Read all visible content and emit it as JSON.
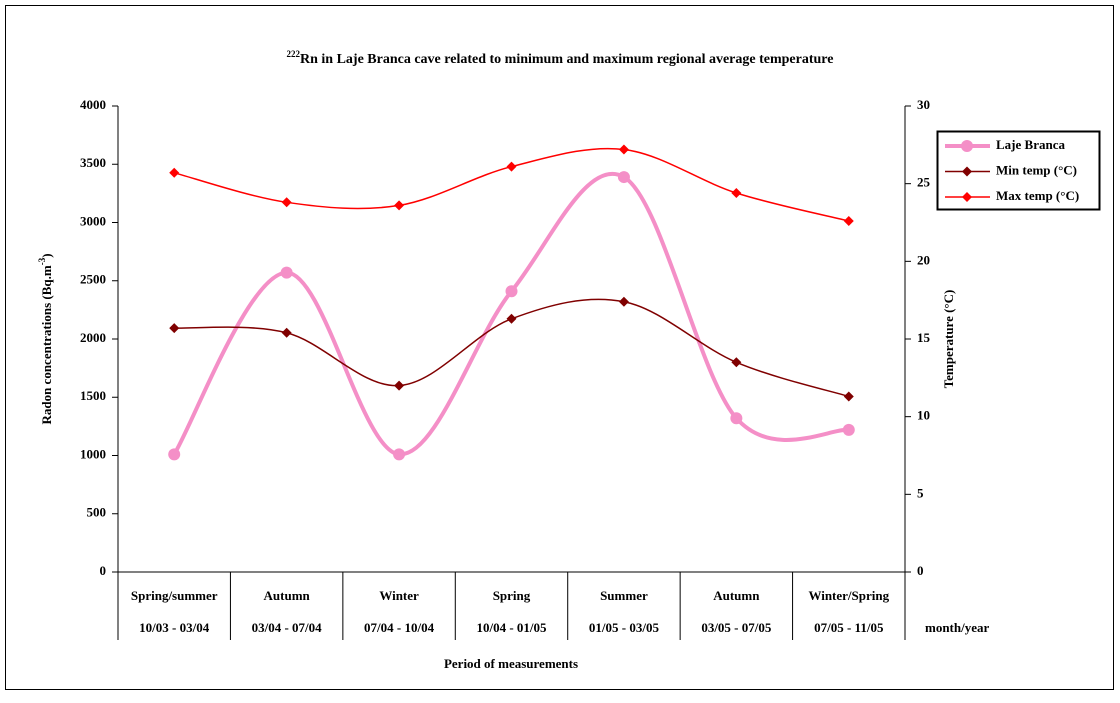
{
  "chart_data": {
    "type": "line",
    "title_sup": "222",
    "title": "Rn in Laje Branca cave related to minimum and maximum regional average temperature",
    "ylabel": "Radon concentrations (Bq.m",
    "ylabel_sup": "-3",
    "ylabel_end": ")",
    "y2label": "Temperature (°C)",
    "xlabel": "Period of measurements",
    "periods_label": "month/year",
    "categories": [
      "Spring/summer",
      "Autumn",
      "Winter",
      "Spring",
      "Summer",
      "Autumn",
      "Winter/Spring"
    ],
    "periods": [
      "10/03 - 03/04",
      "03/04 - 07/04",
      "07/04 - 10/04",
      "10/04 - 01/05",
      "01/05 - 03/05",
      "03/05 - 07/05",
      "07/05 - 11/05"
    ],
    "ylim": [
      0,
      4000
    ],
    "yticks": [
      0,
      500,
      1000,
      1500,
      2000,
      2500,
      3000,
      3500,
      4000
    ],
    "y2lim": [
      0,
      30
    ],
    "y2ticks": [
      0,
      5,
      10,
      15,
      20,
      25,
      30
    ],
    "legend": "right",
    "series": [
      {
        "name": "Laje Branca",
        "color": "#f48fc7",
        "values": [
          1010,
          2570,
          1010,
          2410,
          3390,
          1320,
          1220
        ]
      },
      {
        "name": "Min temp (°C)",
        "color": "#800000",
        "axis": "y2",
        "values": [
          15.7,
          15.4,
          12.0,
          16.3,
          17.4,
          13.5,
          11.3
        ]
      },
      {
        "name": "Max temp (°C)",
        "color": "#ff0000",
        "axis": "y2",
        "values": [
          25.7,
          23.8,
          23.6,
          26.1,
          27.2,
          24.4,
          22.6
        ]
      }
    ]
  }
}
